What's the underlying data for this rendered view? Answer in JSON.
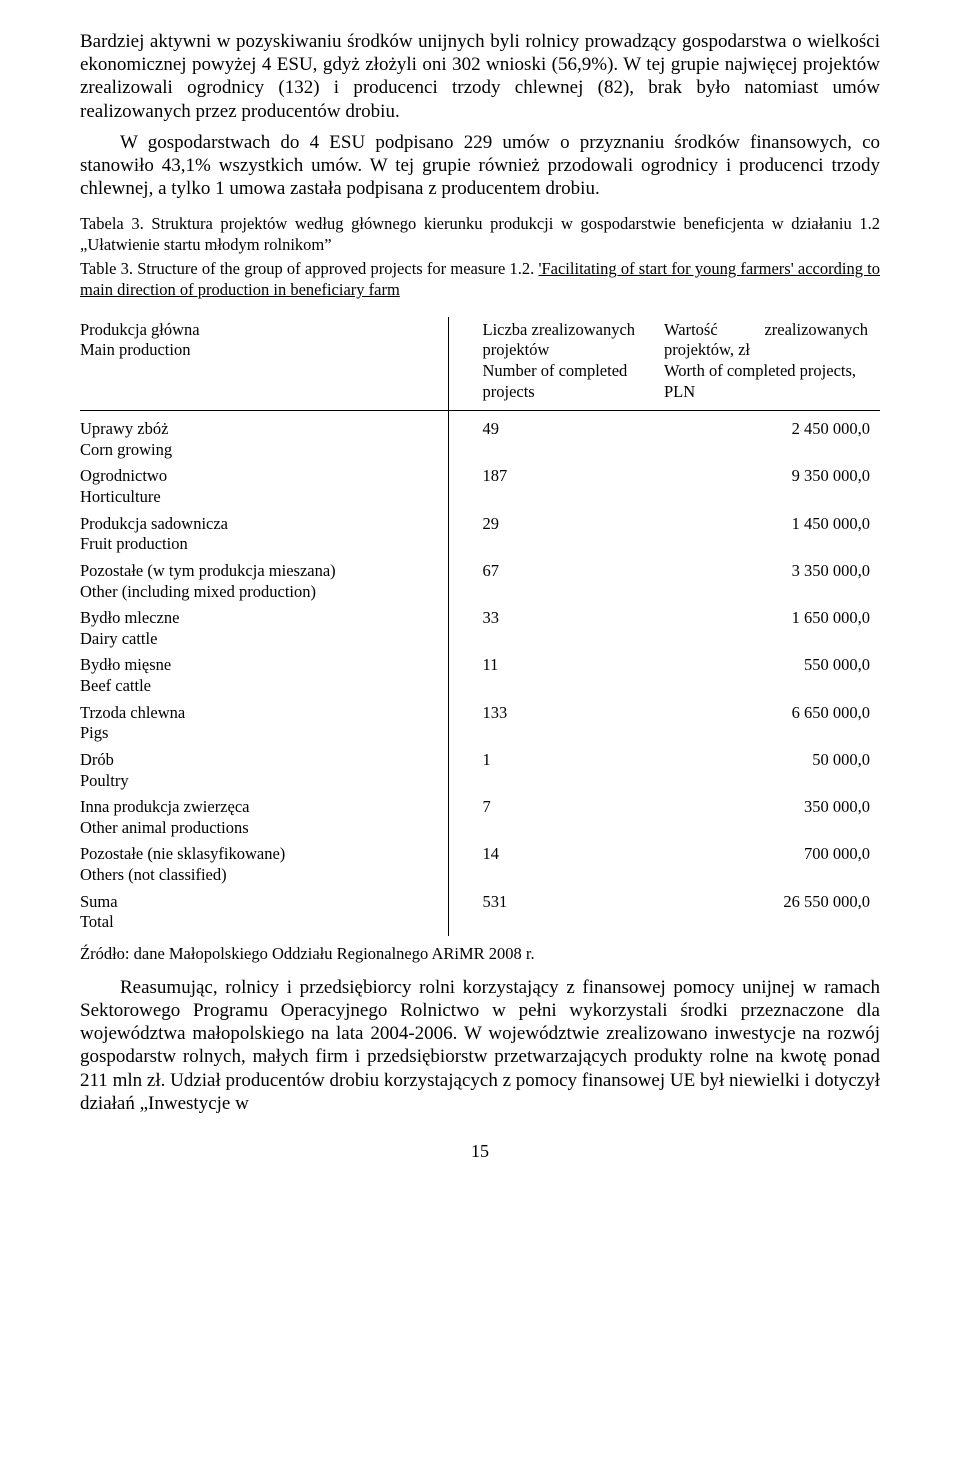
{
  "paragraphs": {
    "p1": "Bardziej aktywni w pozyskiwaniu środków unijnych byli rolnicy prowadzący gospodarstwa o wielkości ekonomicznej powyżej 4 ESU, gdyż złożyli oni 302 wnioski (56,9%). W tej grupie najwięcej projektów zrealizowali ogrodnicy (132) i producenci trzody chlewnej (82), brak było natomiast umów realizowanych przez producentów drobiu.",
    "p2": "W gospodarstwach do 4 ESU podpisano 229 umów o przyznaniu środków finansowych, co stanowiło 43,1% wszystkich umów. W tej grupie również przodowali ogrodnicy i producenci trzody chlewnej, a tylko 1 umowa zastała podpisana z producentem drobiu.",
    "caption_pl": "Tabela 3. Struktura projektów według głównego kierunku produkcji w gospodarstwie beneficjenta w działaniu 1.2 „Ułatwienie startu młodym rolnikom”",
    "caption_en_a": "Table 3. Structure of the group of approved projects for measure 1.2. ",
    "caption_en_b": "'Facilitating of start for young farmers' according to main direction of production in beneficiary farm",
    "source": "Źródło: dane Małopolskiego Oddziału Regionalnego ARiMR 2008 r.",
    "p3": "Reasumując, rolnicy i przedsiębiorcy rolni korzystający z finansowej pomocy unijnej w ramach Sektorowego Programu Operacyjnego Rolnictwo w pełni wykorzystali środki przeznaczone dla województwa małopolskiego na lata 2004-2006. W województwie zrealizowano inwestycje na rozwój gospodarstw rolnych, małych firm i przedsiębiorstw przetwarzających produkty rolne na kwotę ponad 211 mln zł. Udział producentów drobiu korzystających z pomocy finansowej UE był niewielki i dotyczył działań „Inwestycje w",
    "pagenum": "15"
  },
  "table": {
    "type": "table",
    "columns": [
      {
        "pl": "Produkcja główna",
        "en": "Main production",
        "align": "left"
      },
      {
        "pl": "Liczba zrealizowanych projektów",
        "en": "Number of completed projects",
        "align": "left"
      },
      {
        "pl_a": "Wartość",
        "pl_b": "zrealizowanych",
        "pl_c": "projektów, zł",
        "en": "Worth of completed projects, PLN",
        "align": "right"
      }
    ],
    "rows": [
      {
        "pl": "Uprawy zbóż",
        "en": "Corn growing",
        "count": "49",
        "value": "2 450 000,0"
      },
      {
        "pl": "Ogrodnictwo",
        "en": "Horticulture",
        "count": "187",
        "value": "9 350 000,0"
      },
      {
        "pl": "Produkcja sadownicza",
        "en": "Fruit production",
        "count": "29",
        "value": "1 450 000,0"
      },
      {
        "pl": "Pozostałe (w tym produkcja mieszana)",
        "en": "Other (including mixed production)",
        "count": "67",
        "value": "3 350 000,0"
      },
      {
        "pl": "Bydło mleczne",
        "en": "Dairy cattle",
        "count": "33",
        "value": "1 650 000,0"
      },
      {
        "pl": "Bydło mięsne",
        "en": "Beef cattle",
        "count": "11",
        "value": "550 000,0"
      },
      {
        "pl": "Trzoda chlewna",
        "en": "Pigs",
        "count": "133",
        "value": "6 650 000,0"
      },
      {
        "pl": "Drób",
        "en": "Poultry",
        "count": "1",
        "value": "50 000,0"
      },
      {
        "pl": "Inna produkcja zwierzęca",
        "en": "Other animal productions",
        "count": "7",
        "value": "350 000,0"
      },
      {
        "pl": "Pozostałe (nie sklasyfikowane)",
        "en": "Others (not classified)",
        "count": "14",
        "value": "700 000,0"
      },
      {
        "pl": "Suma",
        "en": "Total",
        "count": "531",
        "value": "26 550 000,0"
      }
    ],
    "border_color": "#000000",
    "text_color": "#000000",
    "background_color": "#ffffff",
    "font_size_pt": 12
  }
}
